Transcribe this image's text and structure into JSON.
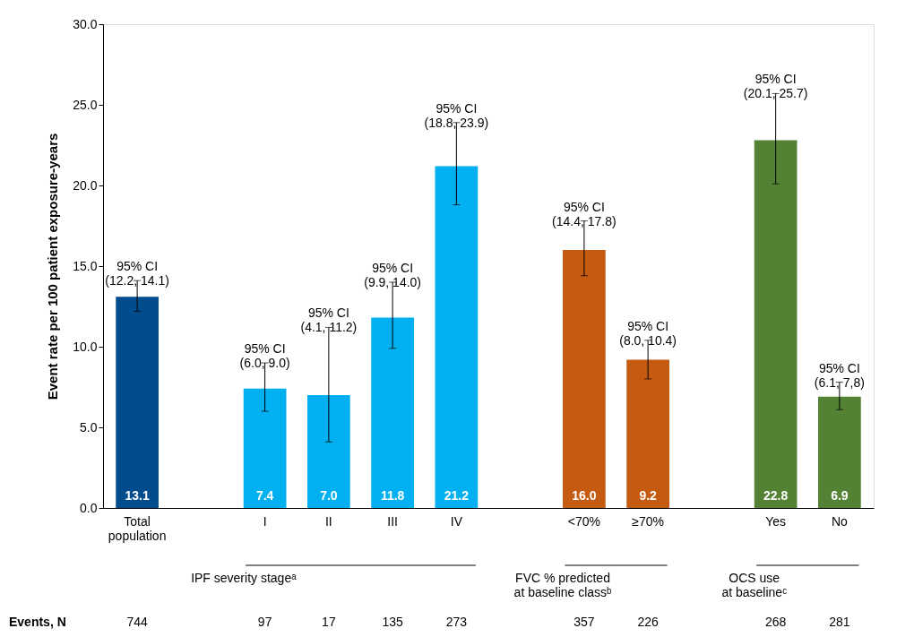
{
  "chart_data": {
    "type": "bar",
    "ylabel": "Event rate per 100 patient exposure-years",
    "categories": [
      "Total\npopulation",
      null,
      "I",
      "II",
      "III",
      "IV",
      null,
      "<70%",
      "≥70%",
      null,
      "Yes",
      "No"
    ],
    "values": [
      13.1,
      null,
      7.4,
      7.0,
      11.8,
      21.2,
      null,
      16.0,
      9.2,
      null,
      22.8,
      6.9
    ],
    "value_labels": [
      "13.1",
      null,
      "7.4",
      "7.0",
      "11.8",
      "21.2",
      null,
      "16.0",
      "9.2",
      null,
      "22.8",
      "6.9"
    ],
    "errors": [
      [
        12.2,
        14.1
      ],
      null,
      [
        6.0,
        9.0
      ],
      [
        4.1,
        11.2
      ],
      [
        9.9,
        14.0
      ],
      [
        18.8,
        23.9
      ],
      null,
      [
        14.4,
        17.8
      ],
      [
        8.0,
        10.4
      ],
      null,
      [
        20.1,
        25.7
      ],
      [
        6.1,
        7.8
      ]
    ],
    "colors": [
      "#004c8c",
      null,
      "#00b0f0",
      "#00b0f0",
      "#00b0f0",
      "#00b0f0",
      null,
      "#c55a11",
      "#c55a11",
      null,
      "#548235",
      "#548235"
    ],
    "ylim": [
      0,
      30
    ],
    "yticks": [
      {
        "value": 0,
        "label": "0.0"
      },
      {
        "value": 5,
        "label": "5.0"
      },
      {
        "value": 10,
        "label": "10.0"
      },
      {
        "value": 15,
        "label": "15.0"
      },
      {
        "value": 20,
        "label": "20.0"
      },
      {
        "value": 25,
        "label": "25.0"
      },
      {
        "value": 30,
        "label": "30.0"
      }
    ],
    "grid": false,
    "annotations": [
      "Events, N",
      "744",
      "97",
      "17",
      "135",
      "273",
      "357",
      "226",
      "268",
      "281",
      "IPF severity stageᵃ",
      "FVC % predicted\nat baseline classᵇ",
      "OCS use\nat baselineᶜ",
      {
        "text": "95% CI\n(12.2, 14.1)",
        "x": "Total\npopulation",
        "y": 14.1
      },
      {
        "text": "95% CI\n(6.0, 9.0)",
        "x": "I",
        "y": 9.0
      },
      {
        "text": "95% CI\n(4.1, 11.2)",
        "x": "II",
        "y": 11.2
      },
      {
        "text": "95% CI\n(9.9, 14.0)",
        "x": "III",
        "y": 14.0
      },
      {
        "text": "95% CI\n(18.8, 23.9)",
        "x": "IV",
        "y": 23.9
      },
      {
        "text": "95% CI\n(14.4, 17.8)",
        "x": "<70%",
        "y": 17.8
      },
      {
        "text": "95% CI\n(8.0, 10.4)",
        "x": "≥70%",
        "y": 10.4
      },
      {
        "text": "95% CI\n(20.1, 25.7)",
        "x": "Yes",
        "y": 25.7
      },
      {
        "text": "95% CI\n(6.1, 7,8)",
        "x": "No",
        "y": 7.8
      }
    ]
  }
}
